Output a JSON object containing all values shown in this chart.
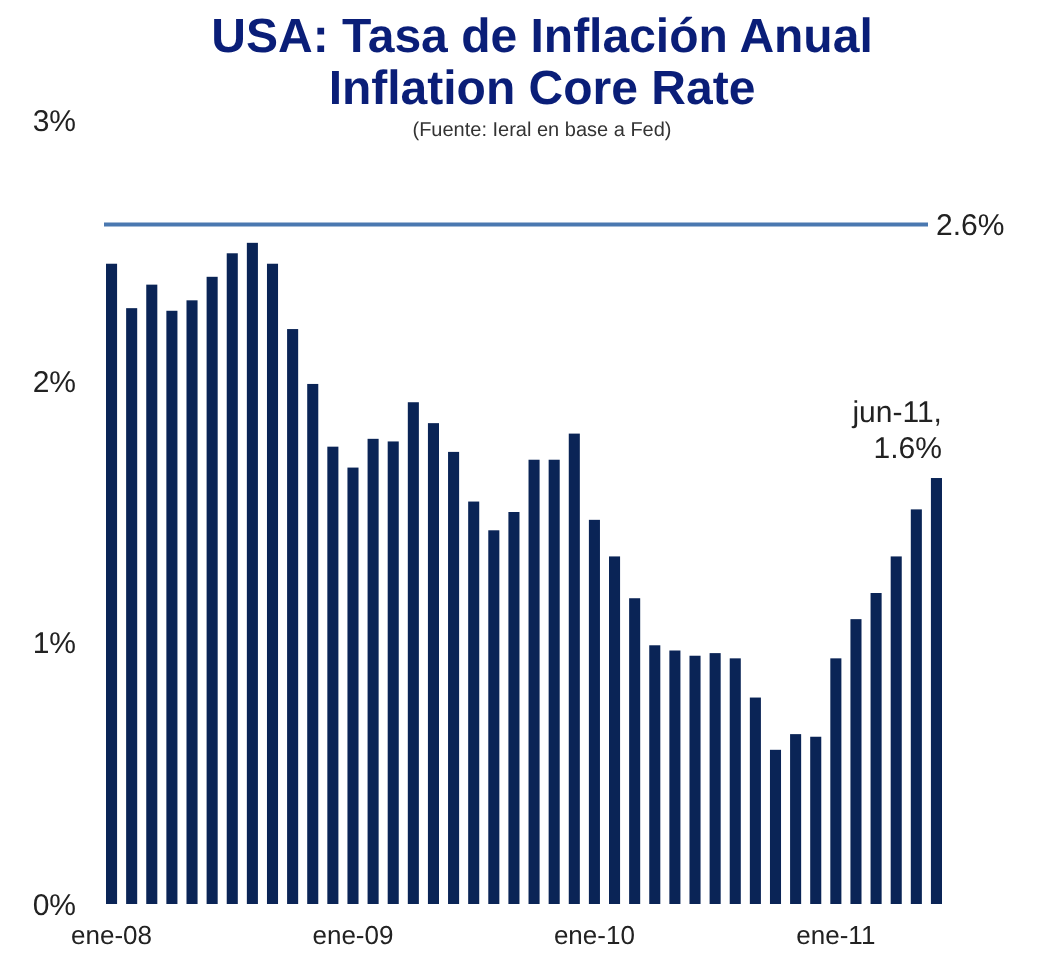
{
  "chart_data": {
    "type": "bar",
    "title": "USA: Tasa de Inflación Anual\nInflation Core Rate",
    "subtitle": "(Fuente: Ieral en base a Fed)",
    "categories": [
      "ene-08",
      null,
      null,
      null,
      null,
      null,
      null,
      null,
      null,
      null,
      null,
      null,
      "ene-09",
      null,
      null,
      null,
      null,
      null,
      null,
      null,
      null,
      null,
      null,
      null,
      "ene-10",
      null,
      null,
      null,
      null,
      null,
      null,
      null,
      null,
      null,
      null,
      null,
      "ene-11",
      null,
      null,
      null,
      null,
      null
    ],
    "values": [
      2.45,
      2.28,
      2.37,
      2.27,
      2.31,
      2.4,
      2.49,
      2.53,
      2.45,
      2.2,
      1.99,
      1.75,
      1.67,
      1.78,
      1.77,
      1.92,
      1.84,
      1.73,
      1.54,
      1.43,
      1.5,
      1.7,
      1.7,
      1.8,
      1.47,
      1.33,
      1.17,
      0.99,
      0.97,
      0.95,
      0.96,
      0.94,
      0.79,
      0.59,
      0.65,
      0.64,
      0.94,
      1.09,
      1.19,
      1.33,
      1.51,
      1.63
    ],
    "color": "#0a2456",
    "ylim": [
      0,
      3
    ],
    "yticks": [
      {
        "value": 0,
        "label": "0%"
      },
      {
        "value": 1,
        "label": "1%"
      },
      {
        "value": 2,
        "label": "2%"
      },
      {
        "value": 3,
        "label": "3%"
      }
    ],
    "ref_lines": [
      {
        "axis": "y",
        "value": 2.6,
        "label": "2.6%",
        "color": "#4a78b0"
      }
    ],
    "annotations": [
      "jun-11,\n1.6%"
    ],
    "grid": false
  }
}
